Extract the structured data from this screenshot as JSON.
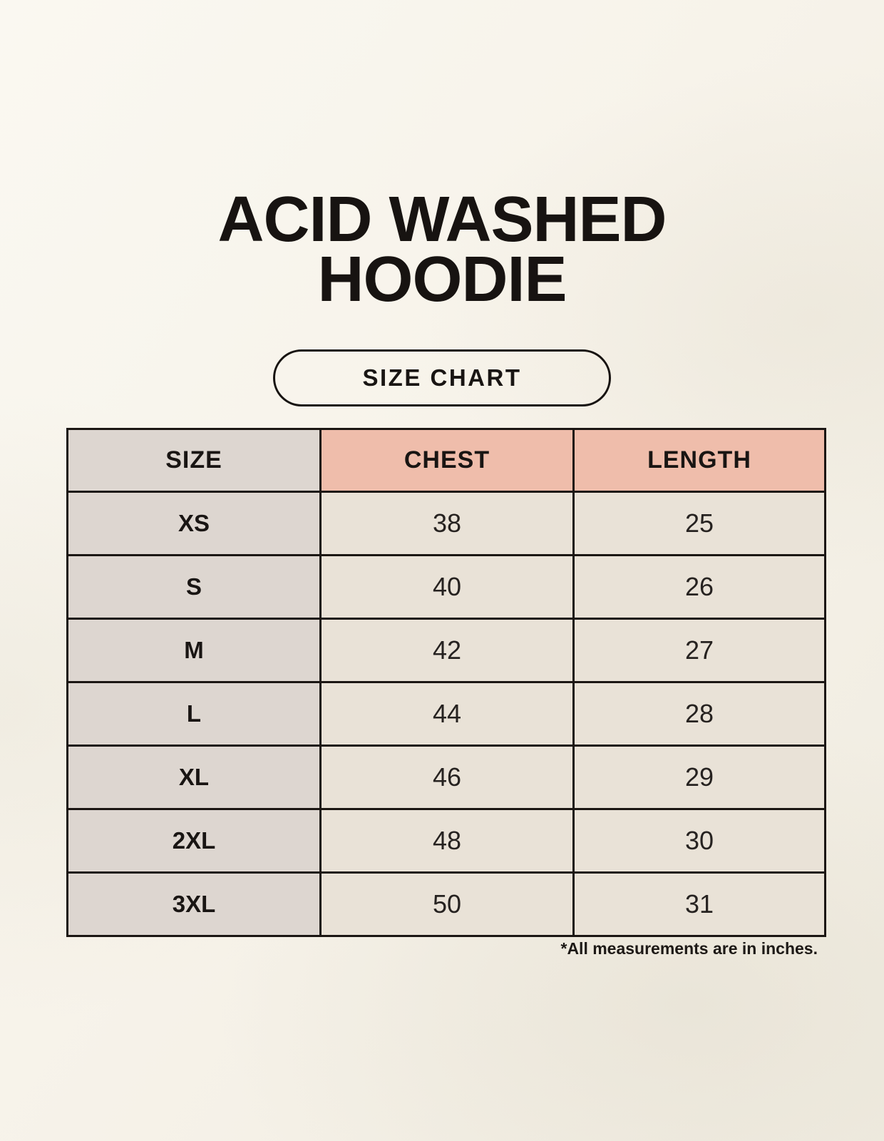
{
  "title": {
    "line1": "ACID WASHED",
    "line2": "HOODIE"
  },
  "size_chart_badge": {
    "label": "SIZE CHART"
  },
  "table": {
    "headers": [
      "SIZE",
      "CHEST",
      "LENGTH"
    ],
    "rows": [
      {
        "size": "XS",
        "chest": "38",
        "length": "25"
      },
      {
        "size": "S",
        "chest": "40",
        "length": "26"
      },
      {
        "size": "M",
        "chest": "42",
        "length": "27"
      },
      {
        "size": "L",
        "chest": "44",
        "length": "28"
      },
      {
        "size": "XL",
        "chest": "46",
        "length": "29"
      },
      {
        "size": "2XL",
        "chest": "48",
        "length": "30"
      },
      {
        "size": "3XL",
        "chest": "50",
        "length": "31"
      }
    ]
  },
  "footnote": "*All measurements are in inches.",
  "colors": {
    "background": "#f7f3ea",
    "header_accent_pink": "#efbdab",
    "size_column_gray": "#ddd6d0",
    "data_cell_cream": "#e9e2d7",
    "table_border": "#1b1613",
    "text": "#191513"
  }
}
